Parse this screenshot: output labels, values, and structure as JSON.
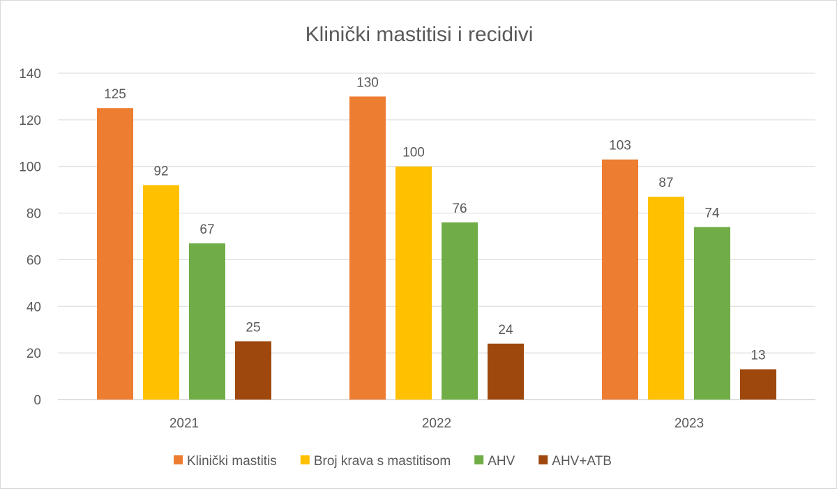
{
  "chart_data": {
    "type": "bar",
    "title": "Klinički mastitisi i recidivi",
    "xlabel": "",
    "ylabel": "",
    "categories": [
      "2021",
      "2022",
      "2023"
    ],
    "series": [
      {
        "name": "Klinički mastitis",
        "color": "#ED7D31",
        "values": [
          125,
          130,
          103
        ]
      },
      {
        "name": "Broj krava s mastitisom",
        "color": "#FFC000",
        "values": [
          92,
          100,
          87
        ]
      },
      {
        "name": "AHV",
        "color": "#70AD47",
        "values": [
          67,
          76,
          74
        ]
      },
      {
        "name": "AHV+ATB",
        "color": "#9E480E",
        "values": [
          25,
          24,
          13
        ]
      }
    ],
    "ylim": [
      0,
      140
    ],
    "yticks": [
      0,
      20,
      40,
      60,
      80,
      100,
      120,
      140
    ],
    "grid": true,
    "data_labels": true,
    "legend": "bottom"
  }
}
